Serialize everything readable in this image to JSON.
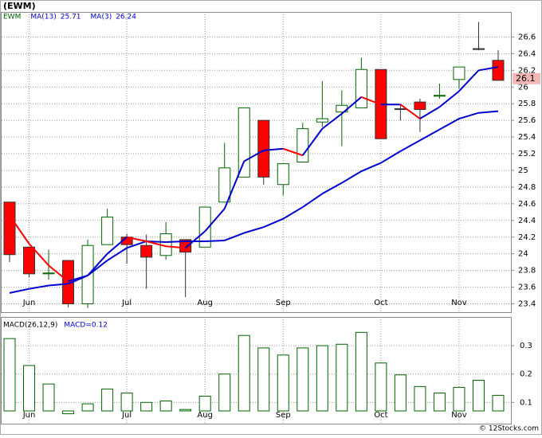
{
  "chart_data": [
    {
      "type": "candlestick",
      "title": "(EWM)",
      "name": "EWM",
      "categories": [
        null,
        "Jun",
        null,
        null,
        null,
        null,
        "Jul",
        null,
        null,
        null,
        "Aug",
        null,
        null,
        null,
        "Sep",
        null,
        null,
        null,
        null,
        "Oct",
        null,
        null,
        null,
        "Nov",
        null,
        null
      ],
      "open": [
        24.62,
        24.08,
        23.76,
        23.92,
        23.4,
        24.11,
        24.2,
        24.1,
        23.98,
        24.17,
        24.08,
        24.62,
        24.92,
        25.6,
        24.83,
        25.1,
        25.58,
        25.7,
        25.75,
        26.21,
        25.74,
        25.82,
        25.89,
        26.09,
        26.46,
        26.32
      ],
      "high": [
        24.62,
        24.08,
        24.05,
        23.92,
        24.17,
        24.54,
        24.24,
        24.23,
        24.38,
        24.17,
        24.56,
        25.33,
        25.75,
        25.6,
        25.08,
        25.57,
        26.07,
        25.96,
        26.35,
        26.21,
        25.79,
        25.86,
        26.04,
        26.24,
        26.78,
        26.44
      ],
      "low": [
        23.9,
        23.72,
        23.69,
        23.36,
        23.35,
        24.11,
        23.88,
        23.58,
        23.93,
        23.48,
        24.08,
        24.62,
        24.92,
        24.83,
        24.7,
        25.1,
        25.52,
        25.29,
        25.75,
        25.38,
        25.6,
        25.46,
        25.86,
        25.98,
        26.44,
        26.08
      ],
      "close": [
        23.99,
        23.76,
        23.77,
        23.4,
        24.1,
        24.44,
        24.11,
        23.96,
        24.24,
        24.02,
        24.56,
        25.03,
        25.75,
        24.92,
        25.08,
        25.5,
        25.62,
        25.78,
        26.21,
        25.38,
        25.73,
        25.73,
        25.9,
        26.24,
        26.45,
        26.08
      ],
      "up_color": "#006400",
      "down_color": "#ff0000",
      "name_color": "#006400",
      "series": [
        {
          "name": "MA(13)",
          "color": "#0000cc",
          "values": [
            23.53,
            23.58,
            23.62,
            23.64,
            23.74,
            23.92,
            24.07,
            24.15,
            24.14,
            24.15,
            24.15,
            24.16,
            24.25,
            24.32,
            24.42,
            24.56,
            24.72,
            24.85,
            24.99,
            25.09,
            25.23,
            25.36,
            25.49,
            25.62,
            25.69,
            25.71
          ]
        },
        {
          "name": "MA(3)",
          "color": "#0000cc",
          "down_color": "#ff0000",
          "values": [
            24.46,
            24.12,
            23.86,
            23.67,
            23.74,
            24.0,
            24.2,
            24.15,
            24.09,
            24.07,
            24.27,
            24.54,
            25.11,
            25.24,
            25.26,
            25.18,
            25.5,
            25.68,
            25.88,
            25.79,
            25.79,
            25.62,
            25.76,
            25.95,
            26.2,
            26.24
          ]
        }
      ],
      "last_price": 26.1,
      "last_price_color": "#f4b6b6",
      "ylim": [
        23.3,
        26.9
      ],
      "yticks": [
        23.4,
        23.6,
        23.8,
        24.0,
        24.2,
        24.4,
        24.6,
        24.8,
        25.0,
        25.2,
        25.4,
        25.6,
        25.8,
        26.0,
        26.2,
        26.4,
        26.6
      ],
      "grid": true
    },
    {
      "type": "bar",
      "title": "MACD(26,12,9)",
      "series_label": "MACD=0.12",
      "color": "#006400",
      "categories": [
        null,
        "Jun",
        null,
        null,
        null,
        null,
        "Jul",
        null,
        null,
        null,
        "Aug",
        null,
        null,
        null,
        "Sep",
        null,
        null,
        null,
        null,
        "Oct",
        null,
        null,
        null,
        "Nov",
        null,
        null
      ],
      "values": [
        0.325,
        0.23,
        0.165,
        0.06,
        0.095,
        0.147,
        0.133,
        0.1,
        0.105,
        0.075,
        0.122,
        0.2,
        0.336,
        0.292,
        0.267,
        0.292,
        0.3,
        0.305,
        0.347,
        0.239,
        0.197,
        0.156,
        0.133,
        0.153,
        0.178,
        0.125
      ],
      "ylim": [
        0.07,
        0.39
      ],
      "yticks": [
        0.1,
        0.2,
        0.3
      ],
      "grid": true
    }
  ],
  "footer": "© 12Stocks.com"
}
